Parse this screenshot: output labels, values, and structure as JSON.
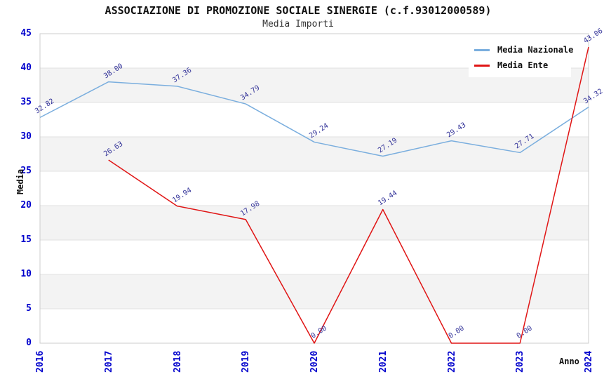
{
  "title": "ASSOCIAZIONE DI PROMOZIONE SOCIALE SINERGIE (c.f.93012000589)",
  "subtitle": "Media Importi",
  "legend": {
    "position": "top-right",
    "items": [
      {
        "label": "Media Nazionale",
        "color": "#7aaede"
      },
      {
        "label": "Media Ente",
        "color": "#e01515"
      }
    ]
  },
  "chart_data": {
    "type": "line",
    "categories": [
      "2016",
      "2017",
      "2018",
      "2019",
      "2020",
      "2021",
      "2022",
      "2023",
      "2024"
    ],
    "series": [
      {
        "name": "Media Nazionale",
        "color": "#7aaede",
        "values": [
          32.82,
          38.0,
          37.36,
          34.79,
          29.24,
          27.19,
          29.43,
          27.71,
          34.32
        ]
      },
      {
        "name": "Media Ente",
        "color": "#e01515",
        "values": [
          null,
          26.63,
          19.94,
          17.98,
          0.0,
          19.44,
          0.0,
          0.0,
          43.06
        ]
      }
    ],
    "title": "Media Importi",
    "xlabel": "Anno",
    "ylabel": "Media",
    "ylim": [
      0,
      45
    ],
    "ytick_step": 5,
    "grid": true,
    "band_fill": "alternating",
    "colors": {
      "tick_label": "#0000cc",
      "data_label": "#333399",
      "band": "#f3f3f3",
      "gridline": "#e0e0e0",
      "plot_border": "#cccccc"
    }
  }
}
